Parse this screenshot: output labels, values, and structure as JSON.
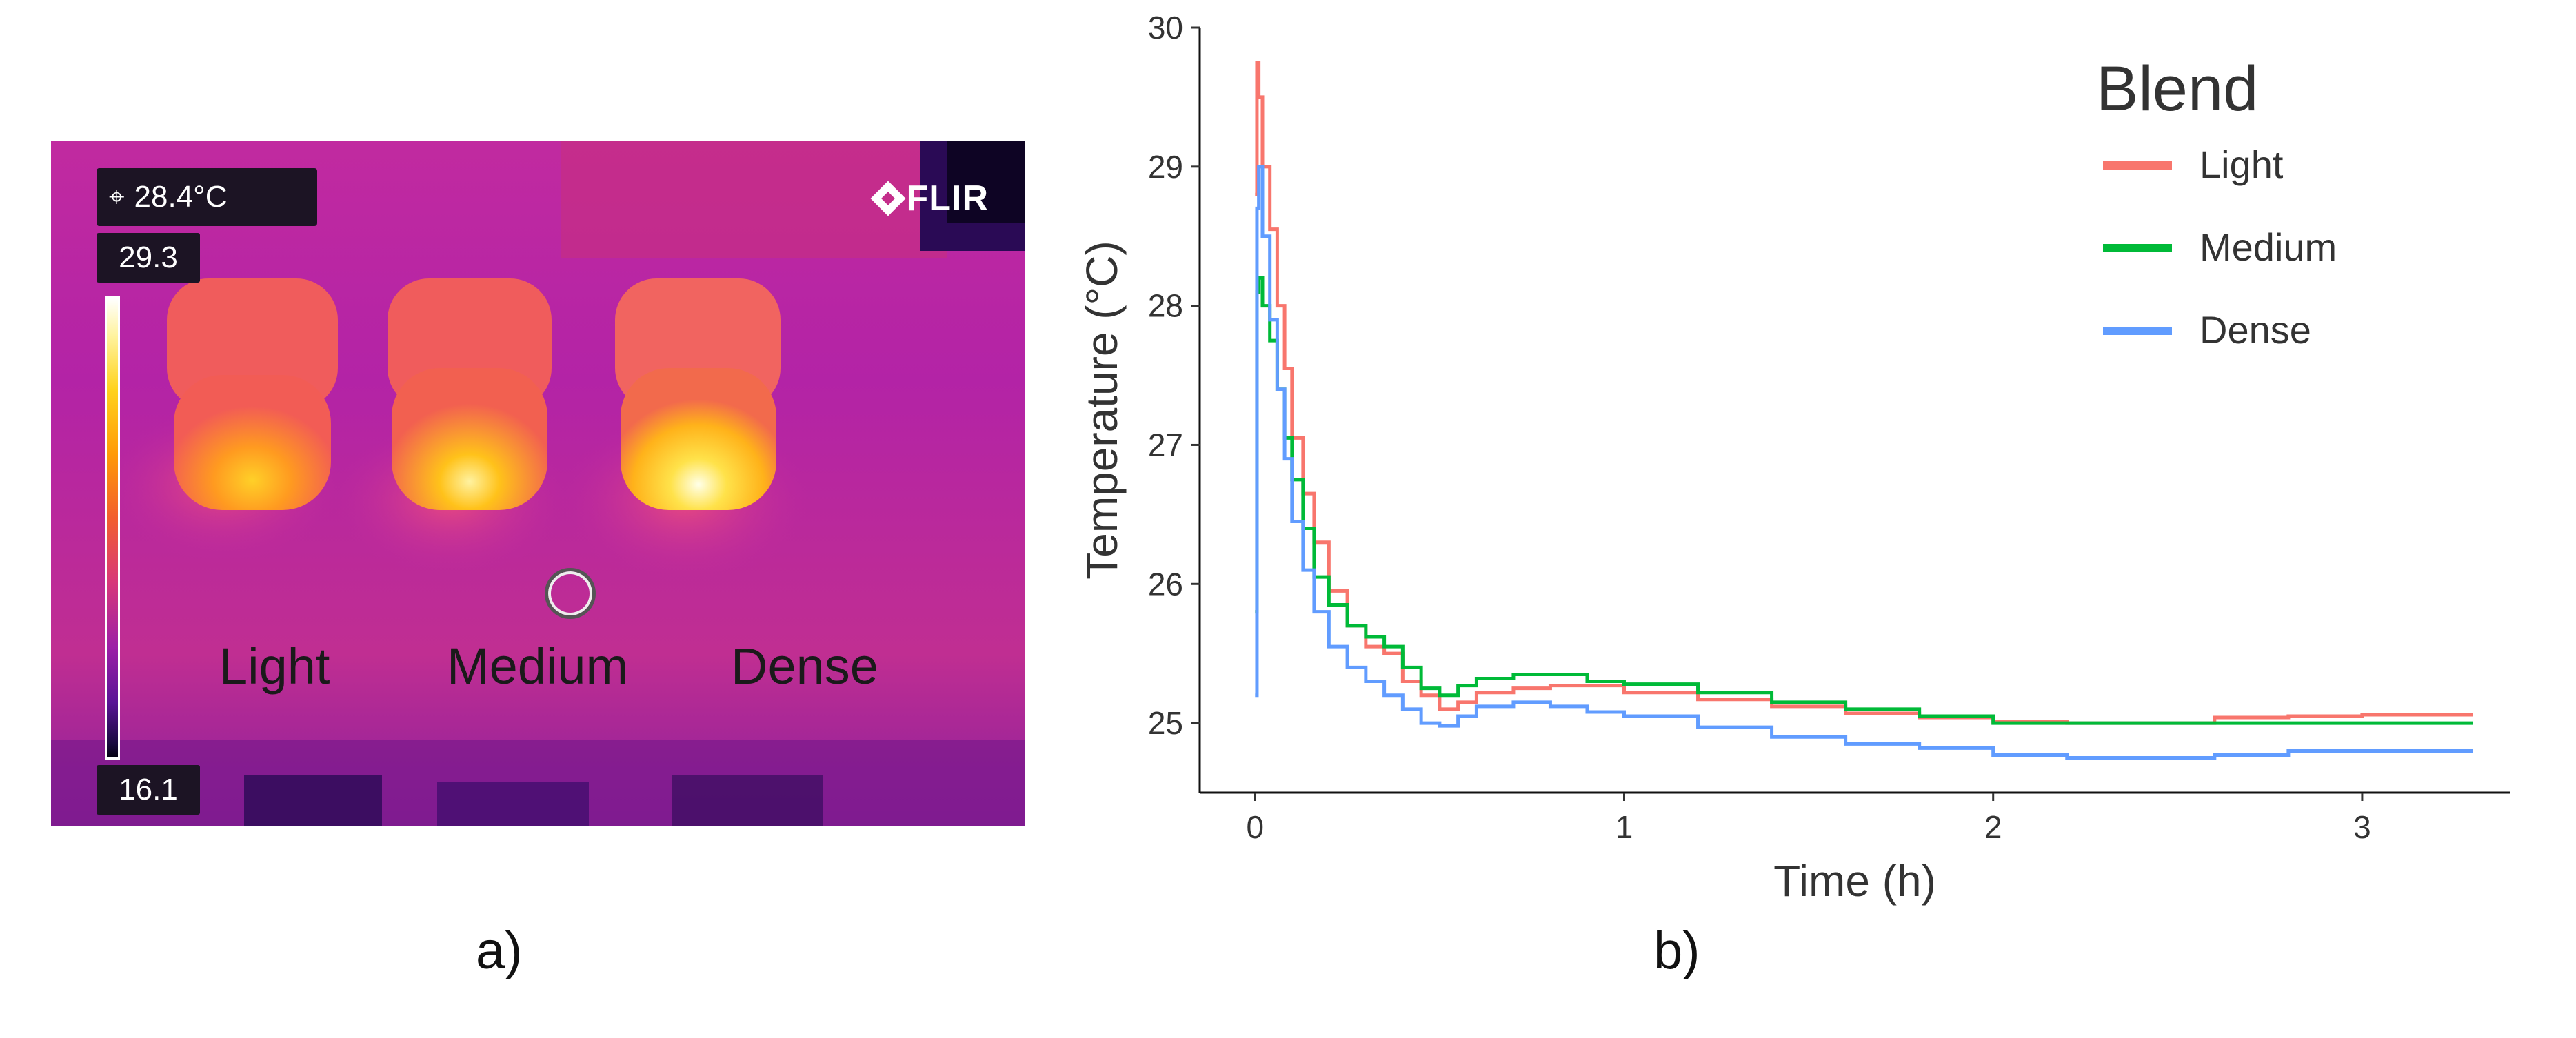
{
  "thermal": {
    "spot_temperature": "28.4°C",
    "scale_max": "29.3",
    "scale_min": "16.1",
    "brand": "FLIR",
    "samples": [
      "Light",
      "Medium",
      "Dense"
    ]
  },
  "panel_labels": {
    "a": "a)",
    "b": "b)"
  },
  "colors": {
    "Light": "#f8766d",
    "Medium": "#00ba38",
    "Dense": "#619cff"
  },
  "chart_data": {
    "type": "line",
    "title": "",
    "xlabel": "Time (h)",
    "ylabel": "Temperature (°C)",
    "xlim": [
      -0.15,
      3.4
    ],
    "ylim": [
      24.5,
      30
    ],
    "xticks": [
      0,
      1,
      2,
      3
    ],
    "yticks": [
      25,
      26,
      27,
      28,
      29,
      30
    ],
    "legend": {
      "title": "Blend",
      "placement": "top-right"
    },
    "series": [
      {
        "name": "Light",
        "x": [
          0,
          0.005,
          0.01,
          0.02,
          0.04,
          0.06,
          0.08,
          0.1,
          0.13,
          0.16,
          0.2,
          0.25,
          0.3,
          0.35,
          0.4,
          0.45,
          0.5,
          0.55,
          0.6,
          0.7,
          0.8,
          0.9,
          1.0,
          1.2,
          1.4,
          1.6,
          1.8,
          2.0,
          2.2,
          2.4,
          2.6,
          2.8,
          3.0,
          3.2,
          3.3
        ],
        "y": [
          28.8,
          29.75,
          29.5,
          29.0,
          28.55,
          28.0,
          27.55,
          27.05,
          26.65,
          26.3,
          25.95,
          25.7,
          25.55,
          25.5,
          25.3,
          25.2,
          25.1,
          25.15,
          25.22,
          25.25,
          25.27,
          25.27,
          25.22,
          25.17,
          25.12,
          25.07,
          25.04,
          25.01,
          25.0,
          25.0,
          25.04,
          25.05,
          25.06,
          25.06,
          25.06
        ]
      },
      {
        "name": "Medium",
        "x": [
          0,
          0.005,
          0.01,
          0.02,
          0.04,
          0.06,
          0.08,
          0.1,
          0.13,
          0.16,
          0.2,
          0.25,
          0.3,
          0.35,
          0.4,
          0.45,
          0.5,
          0.55,
          0.6,
          0.7,
          0.8,
          0.9,
          1.0,
          1.2,
          1.4,
          1.6,
          1.8,
          2.0,
          2.2,
          2.4,
          2.6,
          2.8,
          3.0,
          3.2,
          3.3
        ],
        "y": [
          25.8,
          28.1,
          28.2,
          28.0,
          27.75,
          27.4,
          27.05,
          26.75,
          26.4,
          26.05,
          25.85,
          25.7,
          25.62,
          25.55,
          25.4,
          25.25,
          25.2,
          25.27,
          25.32,
          25.35,
          25.35,
          25.3,
          25.28,
          25.22,
          25.15,
          25.1,
          25.05,
          25.0,
          25.0,
          25.0,
          25.0,
          25.0,
          25.0,
          25.0,
          25.0
        ]
      },
      {
        "name": "Dense",
        "x": [
          0,
          0.005,
          0.01,
          0.02,
          0.04,
          0.06,
          0.08,
          0.1,
          0.13,
          0.16,
          0.2,
          0.25,
          0.3,
          0.35,
          0.4,
          0.45,
          0.5,
          0.55,
          0.6,
          0.7,
          0.8,
          0.9,
          1.0,
          1.2,
          1.4,
          1.6,
          1.8,
          2.0,
          2.2,
          2.4,
          2.6,
          2.8,
          3.0,
          3.2,
          3.3
        ],
        "y": [
          25.2,
          28.7,
          29.0,
          28.5,
          27.9,
          27.4,
          26.9,
          26.45,
          26.1,
          25.8,
          25.55,
          25.4,
          25.3,
          25.2,
          25.1,
          25.0,
          24.98,
          25.05,
          25.12,
          25.15,
          25.12,
          25.08,
          25.05,
          24.97,
          24.9,
          24.85,
          24.82,
          24.77,
          24.75,
          24.75,
          24.77,
          24.8,
          24.8,
          24.8,
          24.8
        ]
      }
    ]
  }
}
